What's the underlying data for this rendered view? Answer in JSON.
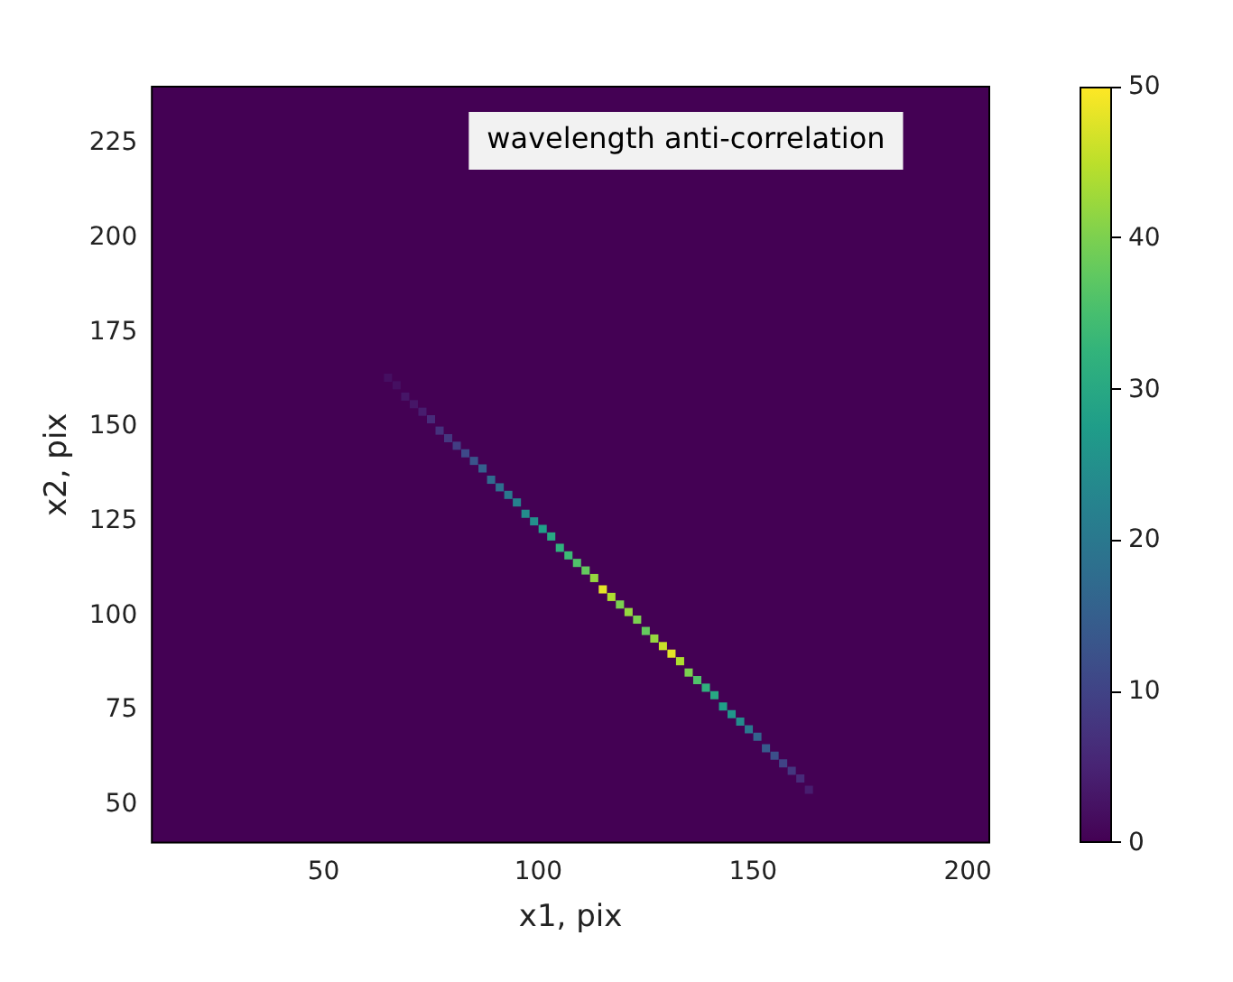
{
  "chart_data": {
    "type": "scatter",
    "xlabel": "x1, pix",
    "ylabel": "x2, pix",
    "annotations": [
      "wavelength anti-correlation"
    ],
    "x": [
      65,
      67,
      69,
      71,
      73,
      75,
      77,
      79,
      81,
      83,
      85,
      87,
      89,
      91,
      93,
      95,
      97,
      99,
      101,
      103,
      105,
      107,
      109,
      111,
      113,
      115,
      117,
      119,
      121,
      123,
      125,
      127,
      129,
      131,
      133,
      135,
      137,
      139,
      141,
      143,
      145,
      147,
      149,
      151,
      153,
      155,
      157,
      159,
      161,
      163
    ],
    "values": [
      163,
      161,
      158,
      156,
      154,
      152,
      149,
      147,
      145,
      143,
      141,
      139,
      136,
      134,
      132,
      130,
      127,
      125,
      123,
      121,
      118,
      116,
      114,
      112,
      110,
      107,
      105,
      103,
      101,
      99,
      96,
      94,
      92,
      90,
      88,
      85,
      83,
      81,
      79,
      76,
      74,
      72,
      70,
      68,
      65,
      63,
      61,
      59,
      57,
      54
    ],
    "cvalues": [
      2,
      2,
      3,
      3,
      4,
      6,
      7,
      8,
      9,
      11,
      13,
      15,
      17,
      18,
      20,
      22,
      24,
      25,
      28,
      30,
      32,
      34,
      36,
      38,
      42,
      48,
      44,
      40,
      42,
      40,
      38,
      42,
      46,
      48,
      44,
      40,
      36,
      32,
      30,
      28,
      26,
      24,
      20,
      16,
      14,
      12,
      10,
      8,
      6,
      4
    ],
    "marker": "square",
    "xlim": [
      10,
      205
    ],
    "ylim": [
      40,
      240
    ],
    "xticks": [
      50,
      100,
      150,
      200
    ],
    "yticks": [
      50,
      75,
      100,
      125,
      150,
      175,
      200,
      225
    ],
    "clim": [
      0,
      50
    ],
    "cticks": [
      0,
      10,
      20,
      30,
      40,
      50
    ],
    "grid": false,
    "legend": false
  }
}
